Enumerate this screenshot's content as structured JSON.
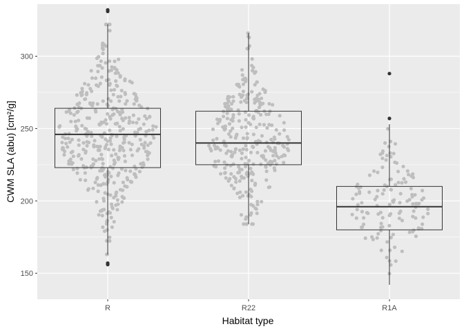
{
  "chart_data": {
    "type": "box",
    "title": "",
    "xlabel": "Habitat type",
    "ylabel": "CWM SLA (abu) [cm²/g]",
    "ylim": [
      132,
      336
    ],
    "yticks": [
      150,
      200,
      250,
      300
    ],
    "categories": [
      "R",
      "R22",
      "R1A"
    ],
    "grid": true,
    "boxes": [
      {
        "category": "R",
        "q1": 223,
        "median": 246,
        "q3": 264,
        "whisker_low": 163,
        "whisker_high": 322,
        "outliers": [
          157,
          156,
          331,
          332
        ],
        "n_points": 420,
        "spread": 0.7
      },
      {
        "category": "R22",
        "q1": 225,
        "median": 240,
        "q3": 262,
        "whisker_low": 184,
        "whisker_high": 316,
        "outliers": [],
        "n_points": 300,
        "spread": 0.58
      },
      {
        "category": "R1A",
        "q1": 180,
        "median": 196,
        "q3": 210,
        "whisker_low": 142,
        "whisker_high": 253,
        "outliers": [
          257,
          288
        ],
        "n_points": 130,
        "spread": 0.58
      }
    ],
    "colors": {
      "panel": "#ebebeb",
      "grid_major": "#ffffff",
      "points": "#bebebe",
      "box": "#333333",
      "outliers": "#333333",
      "tick_label": "#4d4d4d"
    }
  }
}
